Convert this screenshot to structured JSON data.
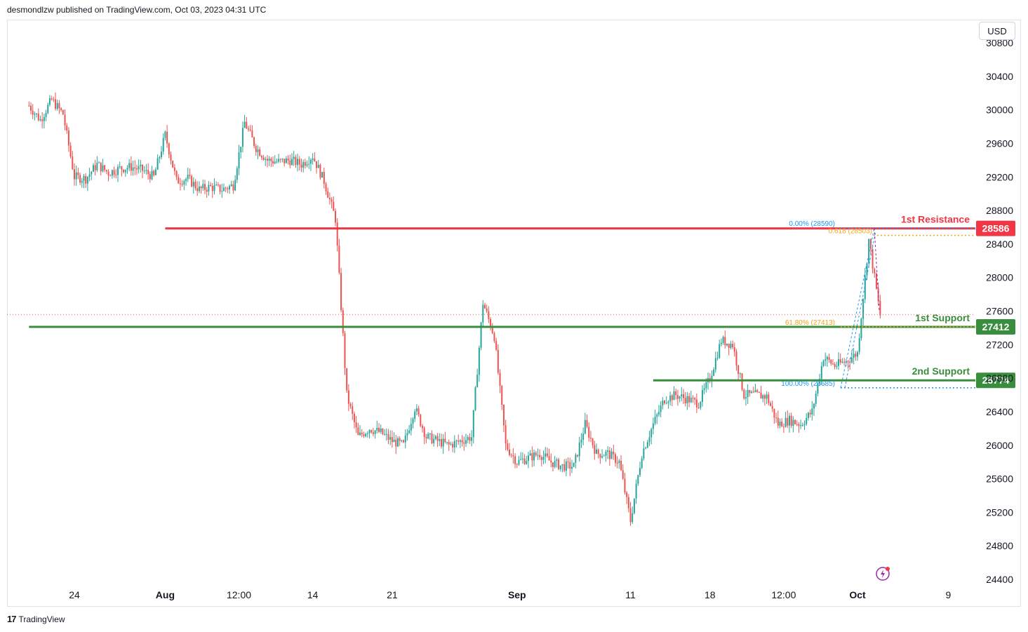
{
  "header": {
    "publisher_line": "desmondlzw published on TradingView.com, Oct 03, 2023 04:31 UTC"
  },
  "toolbar": {
    "currency": "USD"
  },
  "footer": {
    "brand": "TradingView"
  },
  "colors": {
    "up": "#26a69a",
    "down": "#ef5350",
    "resistance": "#f23645",
    "support": "#388e3c",
    "fib_blue": "#2196f3",
    "fib_orange": "#f7a21b",
    "fib_purple": "#9c27b0",
    "grid_text": "#131722"
  },
  "chart_data": {
    "type": "candlestick",
    "ylim": [
      24400,
      30800
    ],
    "y_ticks": [
      30800,
      30400,
      30000,
      29600,
      29200,
      28800,
      28400,
      28000,
      27600,
      27200,
      26800,
      26400,
      26000,
      25600,
      25200,
      24800,
      24400
    ],
    "y_tick_labels": [
      "30800",
      "30400",
      "30000",
      "29600",
      "29200",
      "28800",
      "28400",
      "28000",
      "27600",
      "27200",
      "26800",
      "26400",
      "26000",
      "25600",
      "25200",
      "24800",
      "24400"
    ],
    "x_range": [
      "2023-07-20",
      "2023-10-12"
    ],
    "x_ticks": [
      {
        "label": "24",
        "date": "2023-07-24"
      },
      {
        "label": "Aug",
        "date": "2023-08-01",
        "bold": true
      },
      {
        "label": "12:00",
        "date": "2023-08-07T12:00"
      },
      {
        "label": "14",
        "date": "2023-08-14"
      },
      {
        "label": "21",
        "date": "2023-08-21"
      },
      {
        "label": "Sep",
        "date": "2023-09-01",
        "bold": true
      },
      {
        "label": "11",
        "date": "2023-09-11"
      },
      {
        "label": "18",
        "date": "2023-09-18"
      },
      {
        "label": "12:00",
        "date": "2023-09-24T12:00"
      },
      {
        "label": "Oct",
        "date": "2023-10-01",
        "bold": true
      },
      {
        "label": "9",
        "date": "2023-10-09"
      }
    ],
    "price_path": [
      [
        "2023-07-20",
        30050
      ],
      [
        "2023-07-21",
        29880
      ],
      [
        "2023-07-22",
        30120
      ],
      [
        "2023-07-23",
        29950
      ],
      [
        "2023-07-24",
        29200
      ],
      [
        "2023-07-25",
        29180
      ],
      [
        "2023-07-26",
        29350
      ],
      [
        "2023-07-27",
        29250
      ],
      [
        "2023-07-28",
        29300
      ],
      [
        "2023-07-29",
        29320
      ],
      [
        "2023-07-30",
        29280
      ],
      [
        "2023-07-31",
        29200
      ],
      [
        "2023-08-01",
        29700
      ],
      [
        "2023-08-02",
        29150
      ],
      [
        "2023-08-03",
        29180
      ],
      [
        "2023-08-04",
        29050
      ],
      [
        "2023-08-05",
        29080
      ],
      [
        "2023-08-06",
        29050
      ],
      [
        "2023-08-07",
        29100
      ],
      [
        "2023-08-08",
        29850
      ],
      [
        "2023-08-09",
        29550
      ],
      [
        "2023-08-10",
        29400
      ],
      [
        "2023-08-11",
        29380
      ],
      [
        "2023-08-12",
        29400
      ],
      [
        "2023-08-13",
        29350
      ],
      [
        "2023-08-14",
        29450
      ],
      [
        "2023-08-15",
        29150
      ],
      [
        "2023-08-16",
        28700
      ],
      [
        "2023-08-17",
        26600
      ],
      [
        "2023-08-18",
        26100
      ],
      [
        "2023-08-19",
        26200
      ],
      [
        "2023-08-20",
        26150
      ],
      [
        "2023-08-21",
        26050
      ],
      [
        "2023-08-22",
        26000
      ],
      [
        "2023-08-23",
        26450
      ],
      [
        "2023-08-24",
        26100
      ],
      [
        "2023-08-25",
        26050
      ],
      [
        "2023-08-26",
        26000
      ],
      [
        "2023-08-27",
        26050
      ],
      [
        "2023-08-28",
        26100
      ],
      [
        "2023-08-29",
        27700
      ],
      [
        "2023-08-30",
        27300
      ],
      [
        "2023-08-31",
        26000
      ],
      [
        "2023-09-01",
        25800
      ],
      [
        "2023-09-02",
        25850
      ],
      [
        "2023-09-03",
        25900
      ],
      [
        "2023-09-04",
        25800
      ],
      [
        "2023-09-05",
        25750
      ],
      [
        "2023-09-06",
        25750
      ],
      [
        "2023-09-07",
        26250
      ],
      [
        "2023-09-08",
        25900
      ],
      [
        "2023-09-09",
        25900
      ],
      [
        "2023-09-10",
        25800
      ],
      [
        "2023-09-11",
        25100
      ],
      [
        "2023-09-12",
        25900
      ],
      [
        "2023-09-13",
        26250
      ],
      [
        "2023-09-14",
        26550
      ],
      [
        "2023-09-15",
        26600
      ],
      [
        "2023-09-16",
        26550
      ],
      [
        "2023-09-17",
        26500
      ],
      [
        "2023-09-18",
        26800
      ],
      [
        "2023-09-19",
        27250
      ],
      [
        "2023-09-20",
        27200
      ],
      [
        "2023-09-21",
        26600
      ],
      [
        "2023-09-22",
        26600
      ],
      [
        "2023-09-23",
        26580
      ],
      [
        "2023-09-24",
        26250
      ],
      [
        "2023-09-25",
        26300
      ],
      [
        "2023-09-26",
        26250
      ],
      [
        "2023-09-27",
        26400
      ],
      [
        "2023-09-28",
        27050
      ],
      [
        "2023-09-29",
        26950
      ],
      [
        "2023-09-30",
        27000
      ],
      [
        "2023-10-01",
        27100
      ],
      [
        "2023-10-02",
        28450
      ],
      [
        "2023-10-03",
        27550
      ]
    ],
    "current_price": 27560,
    "levels": [
      {
        "name": "1st Resistance",
        "price": 28586,
        "badge": "28586",
        "kind": "resistance",
        "from": "2023-08-01"
      },
      {
        "name": "1st Support",
        "price": 27412,
        "badge": "27412",
        "kind": "support",
        "from": "2023-07-20"
      },
      {
        "name": "2nd Support",
        "price": 26774,
        "badge": "26774",
        "kind": "support",
        "from": "2023-09-13"
      }
    ],
    "fibonacci": [
      {
        "label": "0.00% (28590)",
        "price": 28590,
        "color": "blue"
      },
      {
        "label": "0.618 (28503)",
        "price": 28503,
        "color": "orange"
      },
      {
        "label": "61.80% (27413)",
        "price": 27413,
        "color": "orange"
      },
      {
        "label": "100.00% (26685)",
        "price": 26685,
        "color": "blue"
      }
    ]
  }
}
